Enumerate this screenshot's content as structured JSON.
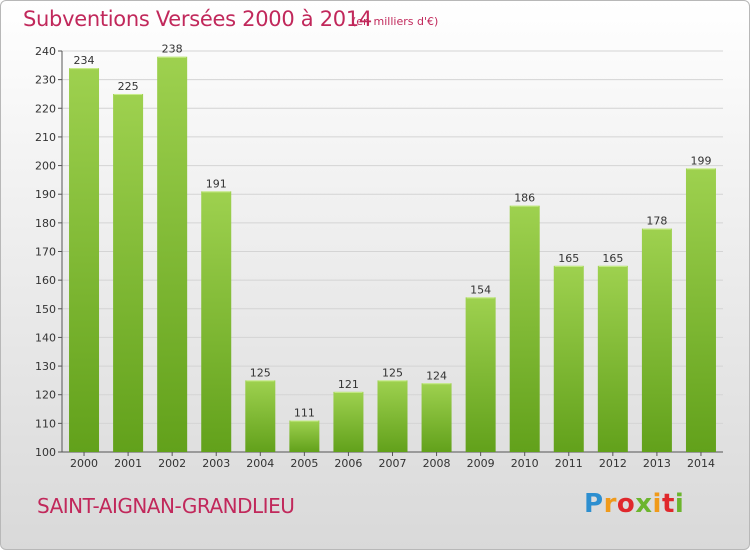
{
  "header": {
    "title": "Subventions Versées 2000 à 2014",
    "unit_note": "(en milliers d'€)"
  },
  "footer": {
    "location": "SAINT-AIGNAN-GRANDLIEU",
    "logo_text": "Proxiti"
  },
  "colors": {
    "accent": "#c1285b",
    "bar_light": "#9ed14f",
    "bar_dark": "#62a11b",
    "grid": "#d4d4d4"
  },
  "chart_data": {
    "type": "bar",
    "title": "Subventions Versées 2000 à 2014",
    "subtitle": "(en milliers d'€)",
    "xlabel": "",
    "ylabel": "",
    "categories": [
      "2000",
      "2001",
      "2002",
      "2003",
      "2004",
      "2005",
      "2006",
      "2007",
      "2008",
      "2009",
      "2010",
      "2011",
      "2012",
      "2013",
      "2014"
    ],
    "values": [
      234,
      225,
      238,
      191,
      125,
      111,
      121,
      125,
      124,
      154,
      186,
      165,
      165,
      178,
      199
    ],
    "ylim": [
      100,
      240
    ],
    "yticks": [
      100,
      110,
      120,
      130,
      140,
      150,
      160,
      170,
      180,
      190,
      200,
      210,
      220,
      230,
      240
    ],
    "grid": true,
    "legend": "none"
  }
}
